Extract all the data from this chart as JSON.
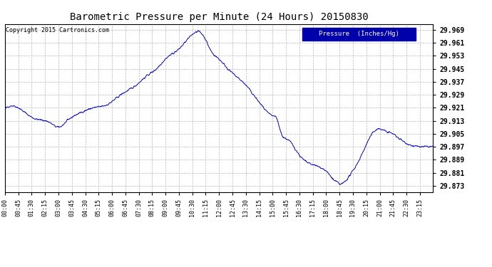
{
  "title": "Barometric Pressure per Minute (24 Hours) 20150830",
  "copyright": "Copyright 2015 Cartronics.com",
  "legend_label": "Pressure  (Inches/Hg)",
  "line_color": "#0000cc",
  "background_color": "#ffffff",
  "grid_color": "#b0b0b0",
  "yticks": [
    29.873,
    29.881,
    29.889,
    29.897,
    29.905,
    29.913,
    29.921,
    29.929,
    29.937,
    29.945,
    29.953,
    29.961,
    29.969
  ],
  "ylim": [
    29.869,
    29.9725
  ],
  "xtick_labels": [
    "00:00",
    "00:45",
    "01:30",
    "02:15",
    "03:00",
    "03:45",
    "04:30",
    "05:15",
    "06:00",
    "06:45",
    "07:30",
    "08:15",
    "09:00",
    "09:45",
    "10:30",
    "11:15",
    "12:00",
    "12:45",
    "13:30",
    "14:15",
    "15:00",
    "15:45",
    "16:30",
    "17:15",
    "18:00",
    "18:45",
    "19:30",
    "20:15",
    "21:00",
    "21:45",
    "22:30",
    "23:15"
  ],
  "key_times": [
    0,
    0.75,
    1.25,
    1.75,
    2.5,
    3.0,
    3.5,
    4.25,
    5.0,
    5.75,
    6.5,
    7.25,
    8.0,
    8.5,
    9.0,
    9.5,
    9.75,
    10.0,
    10.5,
    10.75,
    11.0,
    11.25,
    11.5,
    12.0,
    12.5,
    13.0,
    13.5,
    14.0,
    14.5,
    15.0,
    15.25,
    15.5,
    15.75,
    16.0,
    16.5,
    17.0,
    17.25,
    17.5,
    17.75,
    18.0,
    18.25,
    18.5,
    18.65,
    18.75,
    19.0,
    19.25,
    19.5,
    20.0,
    20.25,
    20.75,
    21.0,
    21.25,
    21.5,
    21.75,
    22.0,
    22.25,
    22.75,
    23.25,
    24.0
  ],
  "key_pressures": [
    29.92,
    29.921,
    29.917,
    29.914,
    29.912,
    29.909,
    29.913,
    29.918,
    29.921,
    29.923,
    29.929,
    29.934,
    29.941,
    29.945,
    29.951,
    29.955,
    29.957,
    29.96,
    29.966,
    29.968,
    29.967,
    29.963,
    29.957,
    29.951,
    29.945,
    29.94,
    29.935,
    29.928,
    29.921,
    29.916,
    29.914,
    29.905,
    29.902,
    29.9,
    29.892,
    29.887,
    29.886,
    29.885,
    29.884,
    29.882,
    29.879,
    29.876,
    29.875,
    29.874,
    29.875,
    29.878,
    29.882,
    29.892,
    29.898,
    29.907,
    29.908,
    29.907,
    29.906,
    29.905,
    29.903,
    29.901,
    29.898,
    29.897,
    29.897
  ]
}
